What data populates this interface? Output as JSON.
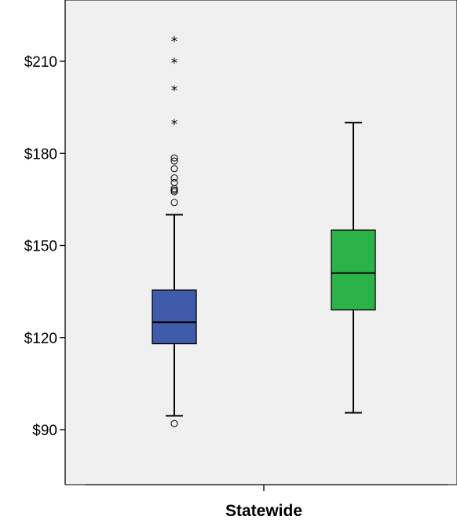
{
  "chart_data": {
    "type": "boxplot",
    "title": "",
    "xlabel": "",
    "ylabel": "",
    "categories": [
      "Statewide"
    ],
    "ylim": [
      81,
      227
    ],
    "yticks": [
      {
        "value": 90,
        "label": "$90"
      },
      {
        "value": 120,
        "label": "$120"
      },
      {
        "value": 150,
        "label": "$150"
      },
      {
        "value": 180,
        "label": "$180"
      },
      {
        "value": 210,
        "label": "$210"
      }
    ],
    "grid": false,
    "background_color": "#f0f0f0",
    "boxes": [
      {
        "category": "Statewide",
        "color": "#3f5ba9",
        "whisker_low": 94.5,
        "q1": 118,
        "median": 125,
        "q3": 135.5,
        "whisker_high": 160,
        "outliers": [
          92,
          164,
          167.5,
          168,
          168.5,
          170.5,
          172,
          175,
          177.5,
          178.5
        ],
        "extremes": [
          190,
          201,
          210,
          217
        ]
      },
      {
        "category": "Statewide",
        "color": "#2bb34a",
        "whisker_low": 95.5,
        "q1": 129,
        "median": 141,
        "q3": 155,
        "whisker_high": 190,
        "outliers": [],
        "extremes": []
      }
    ]
  }
}
